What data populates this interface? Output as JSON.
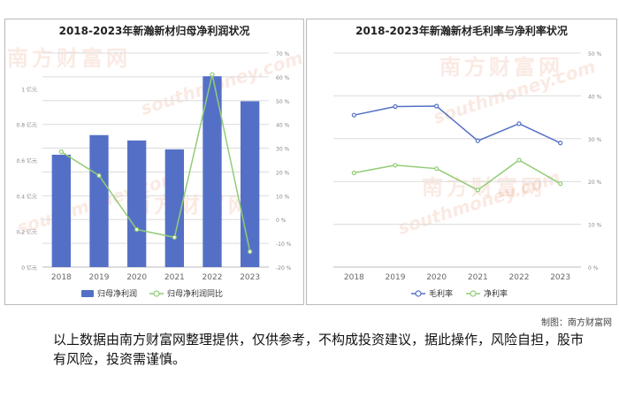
{
  "chart_data": [
    {
      "type": "bar",
      "title": "2018-2023年新瀚新材归母净利润状况",
      "categories": [
        "2018",
        "2019",
        "2020",
        "2021",
        "2022",
        "2023"
      ],
      "series": [
        {
          "name": "归母净利润",
          "type": "bar",
          "axis": "left",
          "values": [
            0.63,
            0.74,
            0.71,
            0.66,
            1.07,
            0.93
          ]
        },
        {
          "name": "归母净利润同比",
          "type": "line",
          "axis": "right",
          "values": [
            28.5,
            18.5,
            -4.2,
            -7.5,
            61.0,
            -13.5
          ]
        }
      ],
      "y_left": {
        "ticks": [
          "0 亿元",
          "0.2 亿元",
          "0.4 亿元",
          "0.6 亿元",
          "0.8 亿元",
          "1 亿元"
        ],
        "range": [
          0,
          1.2
        ]
      },
      "y_right": {
        "ticks": [
          "-20 %",
          "-10 %",
          "0 %",
          "10 %",
          "20 %",
          "30 %",
          "40 %",
          "50 %",
          "60 %",
          "70 %"
        ],
        "range": [
          -20,
          70
        ]
      },
      "grid": true,
      "legend": "bottom"
    },
    {
      "type": "line",
      "title": "2018-2023年新瀚新材毛利率与净利率状况",
      "categories": [
        "2018",
        "2019",
        "2020",
        "2021",
        "2022",
        "2023"
      ],
      "series": [
        {
          "name": "毛利率",
          "values": [
            35.5,
            37.5,
            37.6,
            29.5,
            33.5,
            29.0
          ]
        },
        {
          "name": "净利率",
          "values": [
            22.0,
            23.8,
            23.0,
            18.0,
            25.0,
            19.5
          ]
        }
      ],
      "y_right": {
        "ticks": [
          "0 %",
          "10 %",
          "20 %",
          "30 %",
          "40 %",
          "50 %"
        ],
        "range": [
          0,
          50
        ]
      },
      "grid": true,
      "legend": "bottom"
    }
  ],
  "colors": {
    "bar": "#5470c6",
    "line_green": "#91cc75",
    "line_blue": "#5470c6",
    "grid": "#dcdcdc",
    "axis_text": "#888888"
  },
  "watermark": {
    "cn": "南方财富网",
    "en": "southmoney.com"
  },
  "credit": "制图：南方财富网",
  "disclaimer": "以上数据由南方财富网整理提供，仅供参考，不构成投资建议，据此操作，风险自担，股市有风险，投资需谨慎。"
}
